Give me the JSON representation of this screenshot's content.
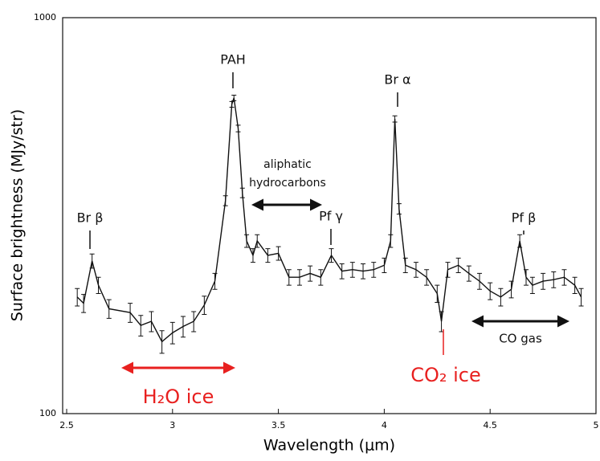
{
  "chart_data": {
    "type": "line",
    "x_label": "Wavelength (μm)",
    "y_label": "Surface brightness (MJy/str)",
    "x": [
      2.55,
      2.58,
      2.62,
      2.65,
      2.7,
      2.8,
      2.85,
      2.9,
      2.95,
      3.0,
      3.05,
      3.1,
      3.15,
      3.2,
      3.25,
      3.28,
      3.29,
      3.31,
      3.33,
      3.35,
      3.38,
      3.4,
      3.45,
      3.5,
      3.55,
      3.6,
      3.65,
      3.7,
      3.75,
      3.8,
      3.85,
      3.9,
      3.95,
      4.0,
      4.03,
      4.05,
      4.07,
      4.1,
      4.15,
      4.2,
      4.25,
      4.27,
      4.3,
      4.35,
      4.4,
      4.45,
      4.5,
      4.55,
      4.6,
      4.64,
      4.67,
      4.7,
      4.75,
      4.8,
      4.85,
      4.9,
      4.93
    ],
    "series": [
      {
        "color": "#111111",
        "error": 10,
        "values": [
          197,
          190,
          243,
          211,
          184,
          180,
          167,
          171,
          152,
          160,
          166,
          171,
          188,
          216,
          345,
          604,
          627,
          525,
          361,
          273,
          251,
          273,
          251,
          254,
          221,
          221,
          226,
          221,
          251,
          229,
          231,
          229,
          231,
          237,
          273,
          555,
          329,
          237,
          231,
          221,
          201,
          171,
          231,
          237,
          226,
          216,
          204,
          197,
          206,
          273,
          221,
          211,
          216,
          218,
          221,
          211,
          197
        ]
      }
    ],
    "xlim": [
      2.5,
      5
    ],
    "xticks": [
      2.5,
      3,
      3.5,
      4,
      4.5,
      5
    ],
    "ylim": [
      100,
      1000
    ],
    "yticks": [
      100,
      1000
    ],
    "log_y": true,
    "annotations": [
      {
        "text": "PAH",
        "color": "#111111"
      },
      {
        "text": "Br α",
        "color": "#111111"
      },
      {
        "text": "aliphatic",
        "color": "#111111"
      },
      {
        "text": "hydrocarbons",
        "color": "#111111"
      },
      {
        "text": "Br β",
        "color": "#111111"
      },
      {
        "text": "Pf γ",
        "color": "#111111"
      },
      {
        "text": "Pf β",
        "color": "#111111"
      },
      {
        "text": "H₂O ice",
        "color": "#e8201f"
      },
      {
        "text": "CO₂ ice",
        "color": "#e8201f"
      },
      {
        "text": "CO gas",
        "color": "#111111"
      }
    ]
  }
}
